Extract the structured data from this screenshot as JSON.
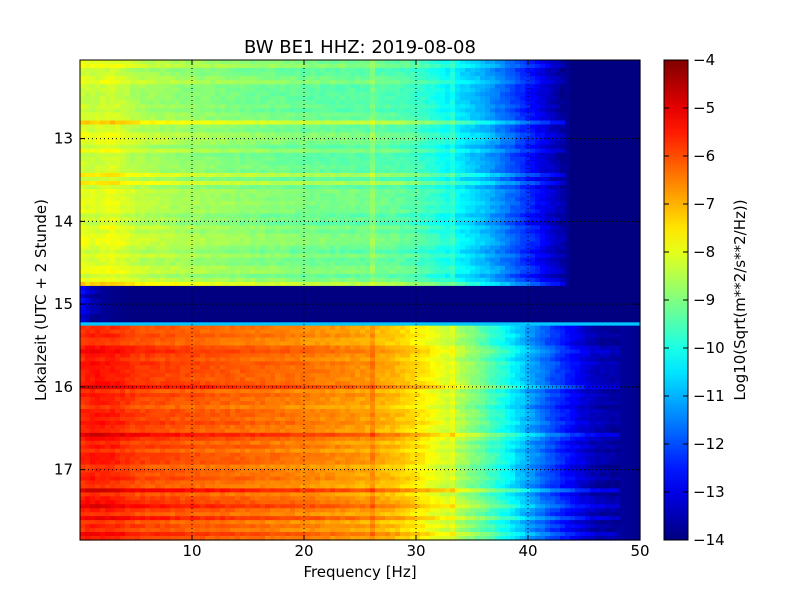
{
  "chart_data": {
    "type": "heatmap",
    "title": "BW BE1 HHZ: 2019-08-08",
    "xlabel": "Frequency [Hz]",
    "ylabel": "Lokalzeit (UTC + 2 Stunde)",
    "colorbar_label": "Log10(Sqrt(m**2/s**2/Hz))",
    "colormap": "jet",
    "xlim": [
      0,
      50
    ],
    "ylim_top_to_bottom": [
      12.05,
      17.85
    ],
    "x_ticks": [
      10,
      20,
      30,
      40,
      50
    ],
    "x_tick_labels": [
      "10",
      "20",
      "30",
      "40",
      "50"
    ],
    "y_ticks": [
      13,
      14,
      15,
      16,
      17
    ],
    "y_tick_labels": [
      "13",
      "14",
      "15",
      "16",
      "17"
    ],
    "colorbar_range": [
      -14,
      -4
    ],
    "colorbar_ticks": [
      -4,
      -5,
      -6,
      -7,
      -8,
      -9,
      -10,
      -11,
      -12,
      -13,
      -14
    ],
    "colorbar_tick_labels": [
      "−4",
      "−5",
      "−6",
      "−7",
      "−8",
      "−9",
      "−10",
      "−11",
      "−12",
      "−13",
      "−14"
    ],
    "grid": "dotted",
    "spectral_profile_x": [
      0,
      1,
      3,
      5,
      10,
      15,
      20,
      25,
      28,
      30,
      32,
      34,
      36,
      38,
      40,
      42,
      44,
      46,
      50
    ],
    "segments": [
      {
        "time_range": [
          12.05,
          14.78
        ],
        "values": [
          -8.0,
          -8.2,
          -8.0,
          -8.4,
          -8.7,
          -8.9,
          -9.1,
          -9.2,
          -9.3,
          -9.5,
          -9.9,
          -10.4,
          -10.9,
          -11.6,
          -12.4,
          -13.2,
          -14,
          -14,
          -14
        ]
      },
      {
        "time_range": [
          14.78,
          15.22
        ],
        "values": [
          -12.8,
          -13.6,
          -13.9,
          -14,
          -14,
          -14,
          -14,
          -14,
          -14,
          -14,
          -14,
          -14,
          -14,
          -14,
          -14,
          -14,
          -14,
          -14,
          -14
        ]
      },
      {
        "time_range": [
          15.22,
          15.26
        ],
        "values": [
          -10.8,
          -10.8,
          -10.8,
          -10.8,
          -10.8,
          -10.8,
          -10.8,
          -10.8,
          -10.8,
          -10.8,
          -10.8,
          -10.8,
          -10.8,
          -10.8,
          -10.8,
          -10.8,
          -10.8,
          -10.8,
          -10.8
        ]
      },
      {
        "time_range": [
          15.26,
          17.85
        ],
        "values": [
          -5.7,
          -5.5,
          -5.6,
          -5.9,
          -6.1,
          -6.3,
          -6.5,
          -6.8,
          -7.1,
          -7.5,
          -8.0,
          -8.6,
          -9.3,
          -10.1,
          -11.1,
          -12.0,
          -12.8,
          -13.5,
          -13.9
        ]
      }
    ]
  }
}
